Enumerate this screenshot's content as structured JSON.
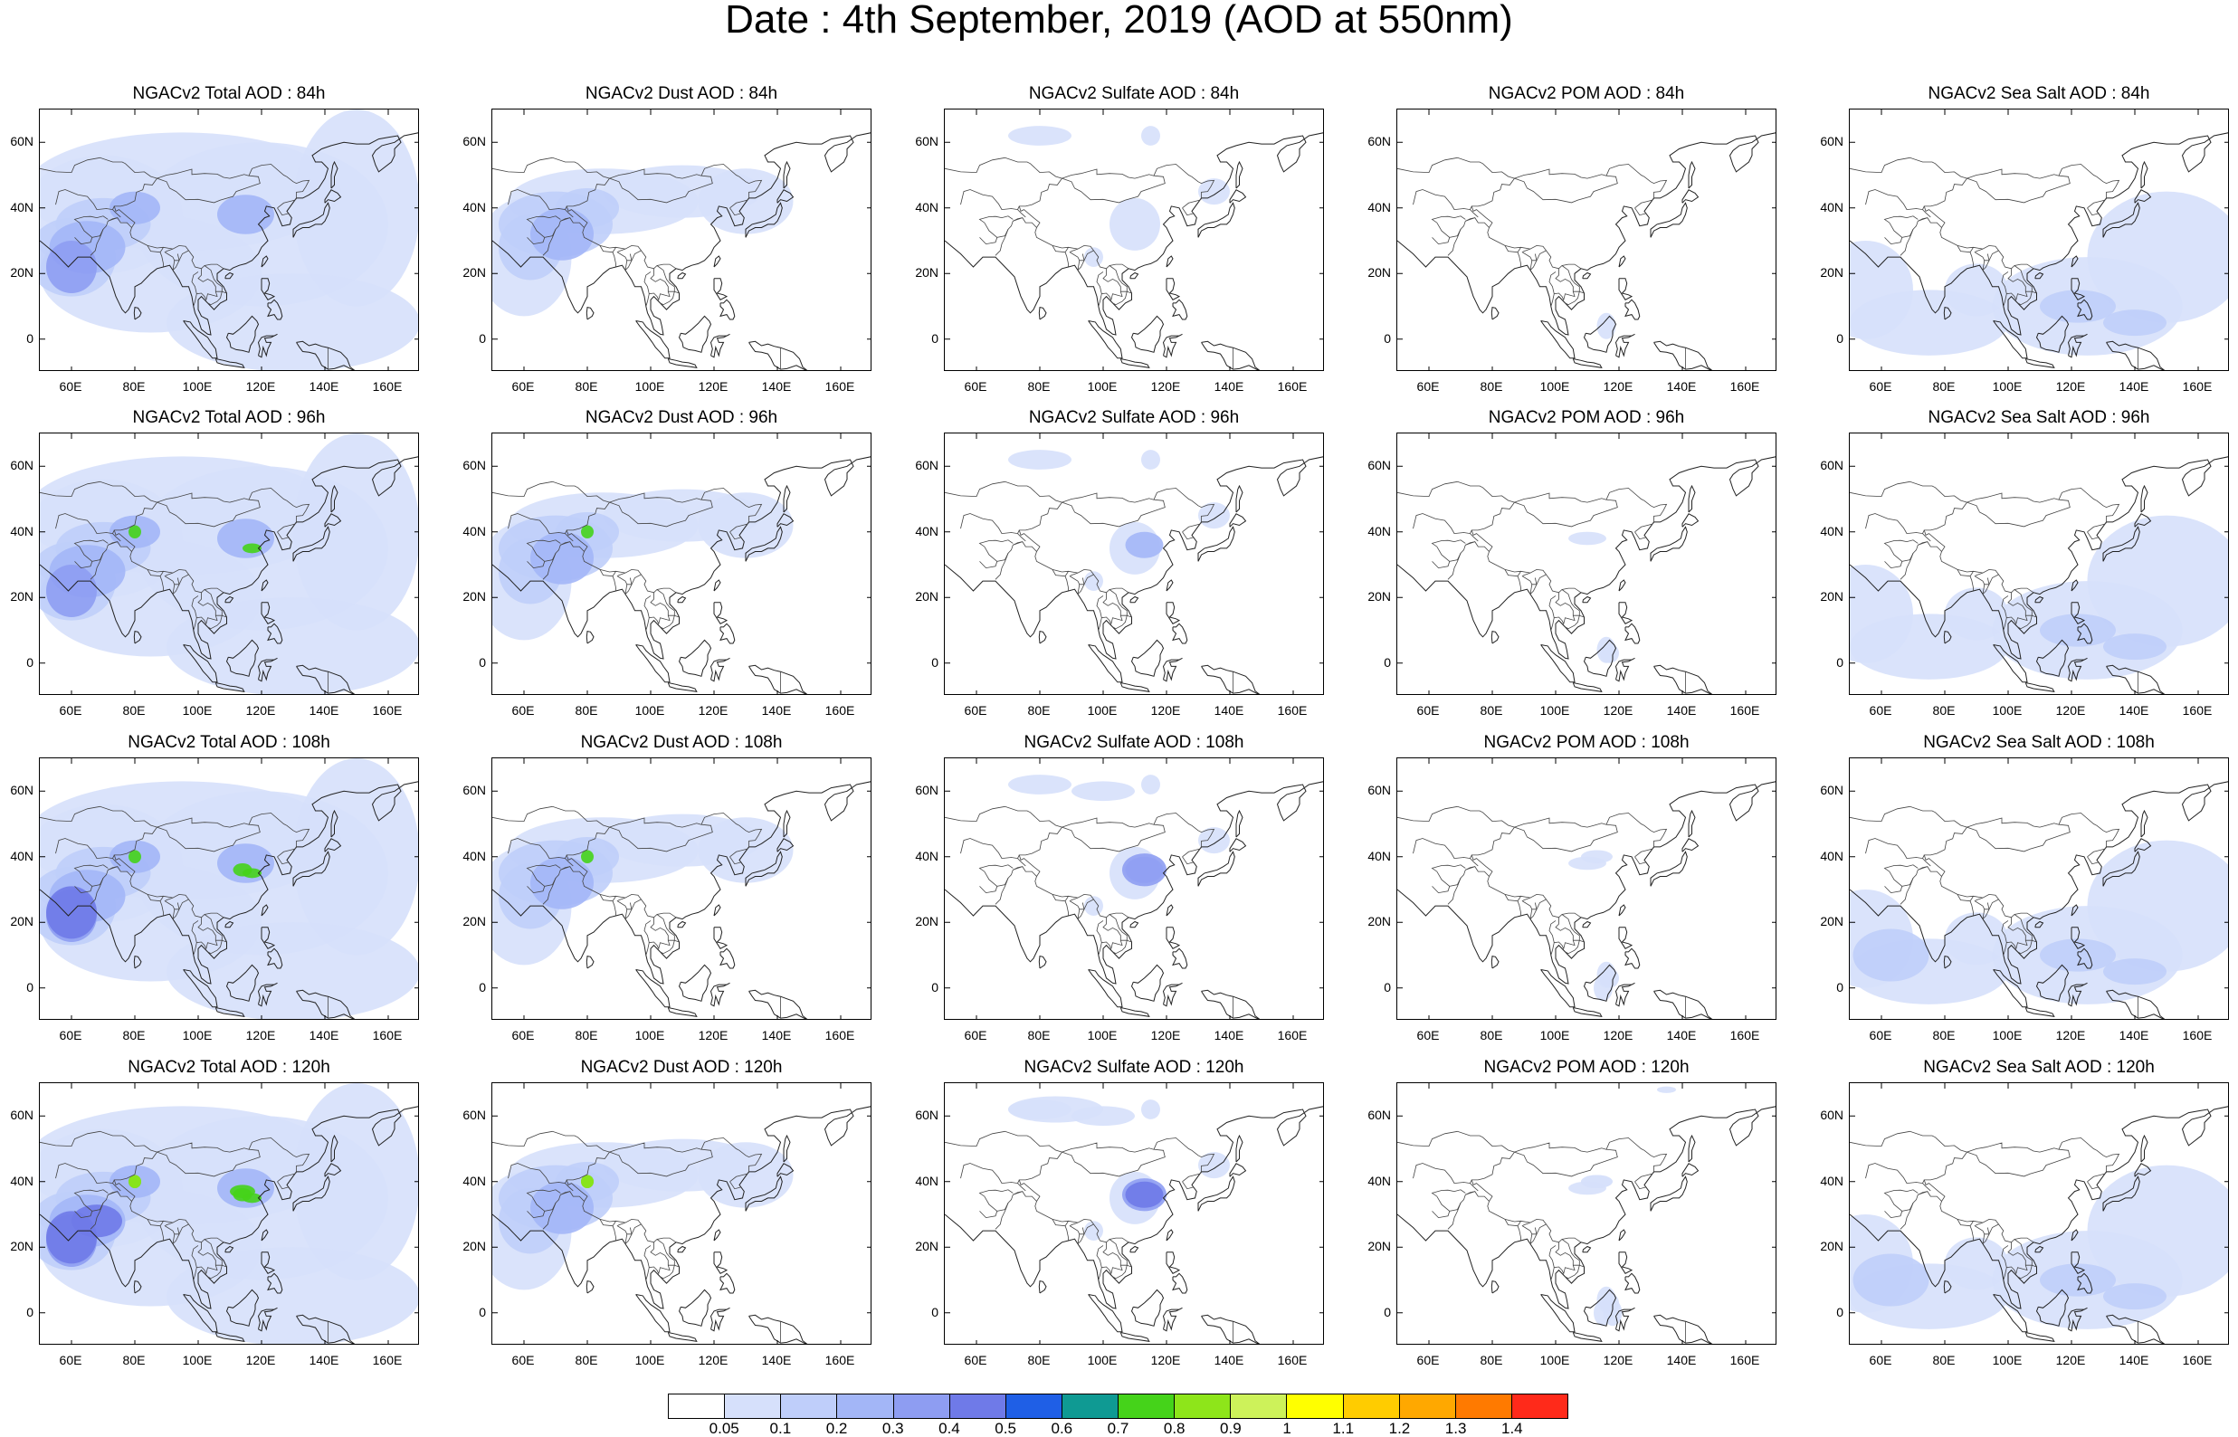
{
  "title": "Date : 4th September, 2019 (AOD at 550nm)",
  "lat_labels": [
    "60N",
    "40N",
    "20N",
    "0"
  ],
  "lon_labels": [
    "60E",
    "80E",
    "100E",
    "120E",
    "140E",
    "160E"
  ],
  "rows": [
    [
      "NGACv2 Total AOD : 84h",
      "NGACv2 Dust AOD : 84h",
      "NGACv2 Sulfate AOD : 84h",
      "NGACv2 POM AOD : 84h",
      "NGACv2 Sea Salt AOD : 84h"
    ],
    [
      "NGACv2 Total AOD : 96h",
      "NGACv2 Dust AOD : 96h",
      "NGACv2 Sulfate AOD : 96h",
      "NGACv2 POM AOD : 96h",
      "NGACv2 Sea Salt AOD : 96h"
    ],
    [
      "NGACv2 Total AOD : 108h",
      "NGACv2 Dust AOD : 108h",
      "NGACv2 Sulfate AOD : 108h",
      "NGACv2 POM AOD : 108h",
      "NGACv2 Sea Salt AOD : 108h"
    ],
    [
      "NGACv2 Total AOD : 120h",
      "NGACv2 Dust AOD : 120h",
      "NGACv2 Sulfate AOD : 120h",
      "NGACv2 POM AOD : 120h",
      "NGACv2 Sea Salt  AOD : 120h"
    ]
  ],
  "colorbar": {
    "colors": [
      "#ffffff",
      "#d6e0fb",
      "#bfcefa",
      "#a3b6f7",
      "#8e9df2",
      "#6f7ae8",
      "#1f5fe6",
      "#0f9a93",
      "#45d31a",
      "#8ee51a",
      "#cdf25a",
      "#ffff00",
      "#ffcc00",
      "#ffa800",
      "#ff7a00",
      "#ff2a1a"
    ],
    "labels": [
      "0.05",
      "0.1",
      "0.2",
      "0.3",
      "0.4",
      "0.5",
      "0.6",
      "0.7",
      "0.8",
      "0.9",
      "1",
      "1.1",
      "1.2",
      "1.3",
      "1.4"
    ]
  }
}
